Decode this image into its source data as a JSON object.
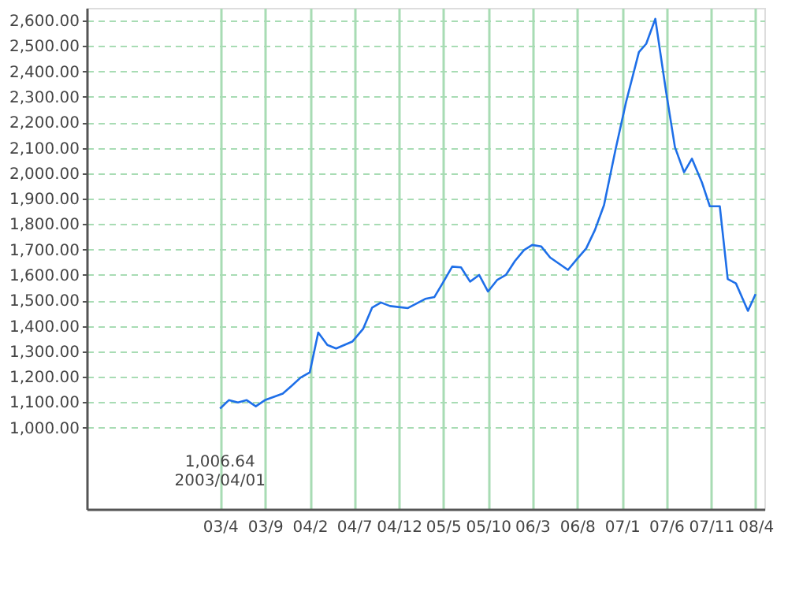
{
  "chart_data": {
    "type": "line",
    "x": [
      "2003-04-01",
      "2003-05-01",
      "2003-06-01",
      "2003-07-01",
      "2003-08-01",
      "2003-09-01",
      "2003-11-01",
      "2003-12-01",
      "2004-01-01",
      "2004-02-01",
      "2004-03-01",
      "2004-04-01",
      "2004-05-01",
      "2004-06-25",
      "2004-08-01",
      "2004-09-01",
      "2004-10-01",
      "2004-11-01",
      "2005-01-01",
      "2005-03-01",
      "2005-04-01",
      "2005-05-01",
      "2005-06-01",
      "2005-07-01",
      "2005-08-01",
      "2005-09-01",
      "2005-10-01",
      "2005-11-01",
      "2005-12-01",
      "2006-01-01",
      "2006-02-01",
      "2006-03-01",
      "2006-04-01",
      "2006-05-01",
      "2006-07-01",
      "2006-08-01",
      "2006-09-01",
      "2006-10-01",
      "2006-11-01",
      "2006-12-10",
      "2007-01-15",
      "2007-02-28",
      "2007-03-25",
      "2007-04-25",
      "2007-06-01",
      "2007-07-01",
      "2007-08-01",
      "2007-08-28",
      "2007-10-01",
      "2007-10-28",
      "2007-12-01",
      "2007-12-28",
      "2008-01-25",
      "2008-03-06",
      "2008-04-01"
    ],
    "series": [
      {
        "color": "#1e6fe8",
        "values": [
          1075,
          1108,
          1099,
          1108,
          1084,
          1108,
          1134,
          1164,
          1197,
          1217,
          1374,
          1325,
          1311,
          1338,
          1388,
          1472,
          1492,
          1478,
          1470,
          1506,
          1513,
          1571,
          1633,
          1630,
          1574,
          1600,
          1535,
          1580,
          1600,
          1655,
          1698,
          1718,
          1712,
          1669,
          1620,
          1663,
          1704,
          1777,
          1875,
          2092,
          2279,
          2476,
          2509,
          2607,
          2318,
          2102,
          2004,
          2057,
          1964,
          1870,
          1870,
          1584,
          1567,
          1459,
          1525
        ]
      }
    ],
    "xlim": [
      "2002-01-01",
      "2008-05-01"
    ],
    "xticks": [
      {
        "value": "2003-04-01",
        "label": "03/4"
      },
      {
        "value": "2003-09-01",
        "label": "03/9"
      },
      {
        "value": "2004-02-01",
        "label": "04/2"
      },
      {
        "value": "2004-07-01",
        "label": "04/7"
      },
      {
        "value": "2004-12-01",
        "label": "04/12"
      },
      {
        "value": "2005-05-01",
        "label": "05/5"
      },
      {
        "value": "2005-10-01",
        "label": "05/10"
      },
      {
        "value": "2006-03-01",
        "label": "06/3"
      },
      {
        "value": "2006-08-01",
        "label": "06/8"
      },
      {
        "value": "2007-01-01",
        "label": "07/1"
      },
      {
        "value": "2007-06-01",
        "label": "07/6"
      },
      {
        "value": "2007-11-01",
        "label": "07/11"
      },
      {
        "value": "2008-04-01",
        "label": "08/4"
      }
    ],
    "ylim": [
      680,
      2650
    ],
    "yticks": [
      {
        "value": 1000,
        "label": "1,000.00"
      },
      {
        "value": 1100,
        "label": "1,100.00"
      },
      {
        "value": 1200,
        "label": "1,200.00"
      },
      {
        "value": 1300,
        "label": "1,300.00"
      },
      {
        "value": 1400,
        "label": "1,400.00"
      },
      {
        "value": 1500,
        "label": "1,500.00"
      },
      {
        "value": 1600,
        "label": "1,600.00"
      },
      {
        "value": 1700,
        "label": "1,700.00"
      },
      {
        "value": 1800,
        "label": "1,800.00"
      },
      {
        "value": 1900,
        "label": "1,900.00"
      },
      {
        "value": 2000,
        "label": "2,000.00"
      },
      {
        "value": 2100,
        "label": "2,100.00"
      },
      {
        "value": 2200,
        "label": "2,200.00"
      },
      {
        "value": 2300,
        "label": "2,300.00"
      },
      {
        "value": 2400,
        "label": "2,400.00"
      },
      {
        "value": 2500,
        "label": "2,500.00"
      },
      {
        "value": 2600,
        "label": "2,600.00"
      }
    ],
    "annotations": [
      "1,006.64\n2003/04/01"
    ],
    "grid": true,
    "line_style": "solid",
    "marker": "none"
  }
}
